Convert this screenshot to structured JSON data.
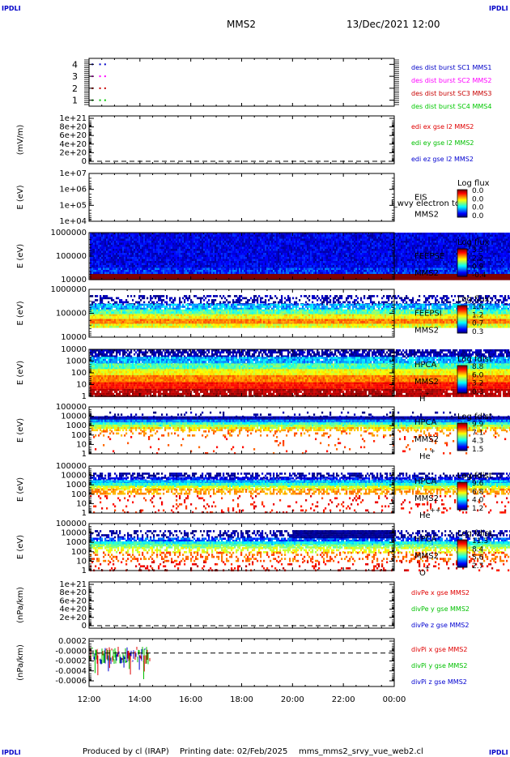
{
  "corner_tags": {
    "tl": "IPDLI",
    "tr": "IPDLI",
    "bl": "IPDLI",
    "br": "IPDLI"
  },
  "header": {
    "spacecraft": "MMS2",
    "date": "13/Dec/2021 12:00"
  },
  "footer": {
    "produced_by": "Produced by cl (IRAP)",
    "printing_date": "Printing date: 02/Feb/2025",
    "file": "mms_mms2_srvy_vue_web2.cl"
  },
  "time_axis": {
    "ticks": [
      "12:00",
      "14:00",
      "16:00",
      "18:00",
      "20:00",
      "22:00",
      "00:00"
    ],
    "start_hour": 12,
    "end_hour": 24
  },
  "colors": {
    "mms1": "#0000c8",
    "mms2": "#ff00ff",
    "mms3": "#c80000",
    "mms4": "#00c800",
    "red": "#e00000",
    "green": "#00c000",
    "blue": "#0000d0"
  },
  "chart_data": [
    {
      "type": "scatter",
      "panel": "burst",
      "ylim": [
        0.5,
        4.5
      ],
      "yticks": [
        "4",
        "3",
        "2",
        "1"
      ],
      "series": [
        {
          "name": "des dist burst SC1 MMS1",
          "y": 4,
          "color": "#0000c8",
          "x_hours": [
            12.1,
            12.4,
            12.6
          ]
        },
        {
          "name": "des dist burst SC2 MMS2",
          "y": 3,
          "color": "#ff00ff",
          "x_hours": [
            12.1,
            12.4,
            12.6
          ]
        },
        {
          "name": "des dist burst SC3 MMS3",
          "y": 2,
          "color": "#c80000",
          "x_hours": [
            12.1,
            12.4,
            12.6
          ]
        },
        {
          "name": "des dist burst SC4 MMS4",
          "y": 1,
          "color": "#00c800",
          "x_hours": [
            12.1,
            12.4,
            12.6
          ]
        }
      ],
      "legend_colors": [
        "#0000c8",
        "#ff00ff",
        "#c80000",
        "#00c800"
      ]
    },
    {
      "type": "line",
      "panel": "edi",
      "ylabel": "(mV/m)",
      "yticks": [
        "1e+21",
        "8e+20",
        "6e+20",
        "4e+20",
        "2e+20",
        "0"
      ],
      "zero_line": true,
      "series": [
        {
          "name": "edi ex gse l2 MMS2",
          "color": "#e00000"
        },
        {
          "name": "edi ey gse l2 MMS2",
          "color": "#00c000"
        },
        {
          "name": "edi ez gse l2 MMS2",
          "color": "#0000d0"
        }
      ]
    },
    {
      "type": "heatmap",
      "panel": "eis",
      "ylabel": "E (eV)",
      "yticks": [
        "1e+07",
        "1e+06",
        "1e+05",
        "1e+04"
      ],
      "instrument": "EIS",
      "overlay_text": "l_wvy electron to",
      "spacecraft": "MMS2",
      "colorbar_title": "Log flux",
      "colorbar_ticks": [
        "0.0",
        "0.0",
        "0.0",
        "0.0"
      ],
      "fill_end_hour": 0,
      "bands": []
    },
    {
      "type": "heatmap",
      "panel": "feeps-e",
      "ylabel": "E (eV)",
      "yticks": [
        "1000000",
        "100000",
        "10000"
      ],
      "instrument": "FEEPSE",
      "spacecraft": "MMS2",
      "colorbar_title": "Log flux",
      "colorbar_ticks": [
        "3.5",
        "2.2",
        "0.9",
        "-0.4"
      ],
      "fill_end_hour": 24,
      "bands": [
        {
          "from": 0.0,
          "to": 0.75,
          "level": 0.1,
          "noise": 0.08,
          "density": 1.0
        },
        {
          "from": 0.75,
          "to": 0.88,
          "level": 0.16,
          "noise": 0.1,
          "density": 1.0
        },
        {
          "from": 0.88,
          "to": 1.0,
          "level": 1.0,
          "noise": 0.0,
          "density": 1.0
        }
      ]
    },
    {
      "type": "heatmap",
      "panel": "feeps-i",
      "ylabel": "E (eV)",
      "yticks": [
        "1000000",
        "100000",
        "10000"
      ],
      "instrument": "FEEPSI",
      "spacecraft": "MMS2",
      "colorbar_title": "Log flux",
      "colorbar_ticks": [
        "1.6",
        "1.2",
        "0.7",
        "0.3"
      ],
      "fill_end_hour": 24,
      "bands": [
        {
          "from": 0.12,
          "to": 0.3,
          "level": 0.04,
          "noise": 0.06,
          "density": 0.45
        },
        {
          "from": 0.3,
          "to": 0.42,
          "level": 0.3,
          "noise": 0.1,
          "density": 0.85
        },
        {
          "from": 0.42,
          "to": 0.52,
          "level": 0.45,
          "noise": 0.1,
          "density": 1.0
        },
        {
          "from": 0.52,
          "to": 0.62,
          "level": 0.62,
          "noise": 0.08,
          "density": 1.0
        },
        {
          "from": 0.62,
          "to": 0.72,
          "level": 0.75,
          "noise": 0.06,
          "density": 1.0
        },
        {
          "from": 0.72,
          "to": 0.8,
          "level": 0.6,
          "noise": 0.08,
          "density": 1.0
        }
      ]
    },
    {
      "type": "heatmap",
      "panel": "hpca-h",
      "ylabel": "E (eV)",
      "yticks": [
        "10000",
        "1000",
        "100",
        "10",
        "1"
      ],
      "instrument": "HPCA",
      "spacecraft": "MMS2",
      "species": "H",
      "species_charge": "+",
      "colorbar_title": "Log fdist",
      "colorbar_ticks": [
        "8.8",
        "6.0",
        "3.2",
        "0.3"
      ],
      "fill_end_hour": 24,
      "bands": [
        {
          "from": 0.0,
          "to": 0.16,
          "level": 0.04,
          "noise": 0.06,
          "density": 0.75
        },
        {
          "from": 0.16,
          "to": 0.3,
          "level": 0.3,
          "noise": 0.1,
          "density": 0.95
        },
        {
          "from": 0.3,
          "to": 0.42,
          "level": 0.45,
          "noise": 0.08,
          "density": 1.0
        },
        {
          "from": 0.42,
          "to": 0.55,
          "level": 0.62,
          "noise": 0.06,
          "density": 1.0
        },
        {
          "from": 0.55,
          "to": 0.7,
          "level": 0.75,
          "noise": 0.06,
          "density": 1.0
        },
        {
          "from": 0.7,
          "to": 0.84,
          "level": 0.86,
          "noise": 0.05,
          "density": 1.0
        },
        {
          "from": 0.84,
          "to": 1.0,
          "level": 0.95,
          "noise": 0.04,
          "density": 0.9
        }
      ]
    },
    {
      "type": "heatmap",
      "panel": "hpca-he",
      "ylabel": "E (eV)",
      "yticks": [
        "100000",
        "10000",
        "1000",
        "100",
        "10",
        "1"
      ],
      "instrument": "HPCA",
      "spacecraft": "MMS2",
      "species": "He",
      "species_charge": "+",
      "colorbar_title": "Log fdist",
      "colorbar_ticks": [
        "9.9",
        "7.1",
        "4.3",
        "1.5"
      ],
      "fill_end_hour": 24,
      "bands": [
        {
          "from": 0.1,
          "to": 0.2,
          "level": 0.02,
          "noise": 0.05,
          "density": 0.12
        },
        {
          "from": 0.2,
          "to": 0.27,
          "level": 0.04,
          "noise": 0.05,
          "density": 1.0
        },
        {
          "from": 0.27,
          "to": 0.33,
          "level": 0.25,
          "noise": 0.08,
          "density": 1.0
        },
        {
          "from": 0.33,
          "to": 0.38,
          "level": 0.42,
          "noise": 0.08,
          "density": 1.0
        },
        {
          "from": 0.38,
          "to": 0.43,
          "level": 0.55,
          "noise": 0.06,
          "density": 0.9
        },
        {
          "from": 0.43,
          "to": 0.5,
          "level": 0.68,
          "noise": 0.06,
          "density": 0.55
        },
        {
          "from": 0.5,
          "to": 0.62,
          "level": 0.75,
          "noise": 0.06,
          "density": 0.2
        },
        {
          "from": 0.62,
          "to": 1.0,
          "level": 0.82,
          "noise": 0.05,
          "density": 0.04
        }
      ]
    },
    {
      "type": "heatmap",
      "panel": "hpca-hepp",
      "ylabel": "E (eV)",
      "yticks": [
        "100000",
        "10000",
        "1000",
        "100",
        "10",
        "1"
      ],
      "instrument": "HPCA",
      "spacecraft": "MMS2",
      "species": "He",
      "species_charge": "++",
      "colorbar_title": "Log fdist",
      "colorbar_ticks": [
        "9.6",
        "6.8",
        "4.0",
        "1.2"
      ],
      "fill_end_hour": 24,
      "bands": [
        {
          "from": 0.14,
          "to": 0.24,
          "level": 0.03,
          "noise": 0.06,
          "density": 0.55
        },
        {
          "from": 0.24,
          "to": 0.3,
          "level": 0.12,
          "noise": 0.08,
          "density": 0.8
        },
        {
          "from": 0.3,
          "to": 0.36,
          "level": 0.3,
          "noise": 0.08,
          "density": 1.0
        },
        {
          "from": 0.36,
          "to": 0.42,
          "level": 0.42,
          "noise": 0.08,
          "density": 1.0
        },
        {
          "from": 0.42,
          "to": 0.48,
          "level": 0.6,
          "noise": 0.06,
          "density": 0.85
        },
        {
          "from": 0.48,
          "to": 0.58,
          "level": 0.72,
          "noise": 0.06,
          "density": 0.55
        },
        {
          "from": 0.62,
          "to": 1.0,
          "level": 0.86,
          "noise": 0.06,
          "density": 0.12
        }
      ]
    },
    {
      "type": "heatmap",
      "panel": "hpca-o",
      "ylabel": "E (eV)",
      "yticks": [
        "100000",
        "10000",
        "1000",
        "100",
        "10",
        "1"
      ],
      "instrument": "HPCA",
      "spacecraft": "MMS2",
      "species": "O",
      "species_charge": "+",
      "colorbar_title": "Log fdist",
      "colorbar_ticks": [
        "11.3",
        "8.4",
        "5.6",
        "2.7"
      ],
      "fill_end_hour": 24,
      "bands": [
        {
          "from": 0.14,
          "to": 0.3,
          "level": 0.03,
          "noise": 0.06,
          "density": 0.45
        },
        {
          "from": 0.3,
          "to": 0.38,
          "level": 0.2,
          "noise": 0.08,
          "density": 0.75
        },
        {
          "from": 0.38,
          "to": 0.44,
          "level": 0.38,
          "noise": 0.08,
          "density": 1.0
        },
        {
          "from": 0.44,
          "to": 0.5,
          "level": 0.5,
          "noise": 0.06,
          "density": 0.85
        },
        {
          "from": 0.5,
          "to": 0.6,
          "level": 0.6,
          "noise": 0.06,
          "density": 0.5
        },
        {
          "from": 0.6,
          "to": 0.8,
          "level": 0.78,
          "noise": 0.06,
          "density": 0.28
        },
        {
          "from": 0.8,
          "to": 1.0,
          "level": 0.88,
          "noise": 0.06,
          "density": 0.14
        }
      ],
      "patch": {
        "from_hour": 20.0,
        "to_hour": 24.0,
        "from": 0.14,
        "to": 0.3,
        "level": 0.02
      }
    },
    {
      "type": "line",
      "panel": "divpe",
      "ylabel": "(nPa/km)",
      "yticks": [
        "1e+21",
        "8e+20",
        "6e+20",
        "4e+20",
        "2e+20",
        "0"
      ],
      "zero_line": true,
      "series": [
        {
          "name": "divPe x gse MMS2",
          "color": "#e00000"
        },
        {
          "name": "divPe y gse MMS2",
          "color": "#00c000"
        },
        {
          "name": "divPe z gse MMS2",
          "color": "#0000d0"
        }
      ]
    },
    {
      "type": "line",
      "panel": "divpi",
      "ylabel": "(nPa/km)",
      "yticks": [
        "0.0002",
        "-0.0000",
        "-0.0002",
        "-0.0004",
        "-0.0006"
      ],
      "ylim": [
        -0.0007,
        0.0003
      ],
      "zero_line": true,
      "data_end_hour": 14.4,
      "series": [
        {
          "name": "divPi x gse MMS2",
          "color": "#e00000"
        },
        {
          "name": "divPi y gse MMS2",
          "color": "#00c000"
        },
        {
          "name": "divPi z gse MMS2",
          "color": "#0000d0"
        }
      ]
    }
  ]
}
